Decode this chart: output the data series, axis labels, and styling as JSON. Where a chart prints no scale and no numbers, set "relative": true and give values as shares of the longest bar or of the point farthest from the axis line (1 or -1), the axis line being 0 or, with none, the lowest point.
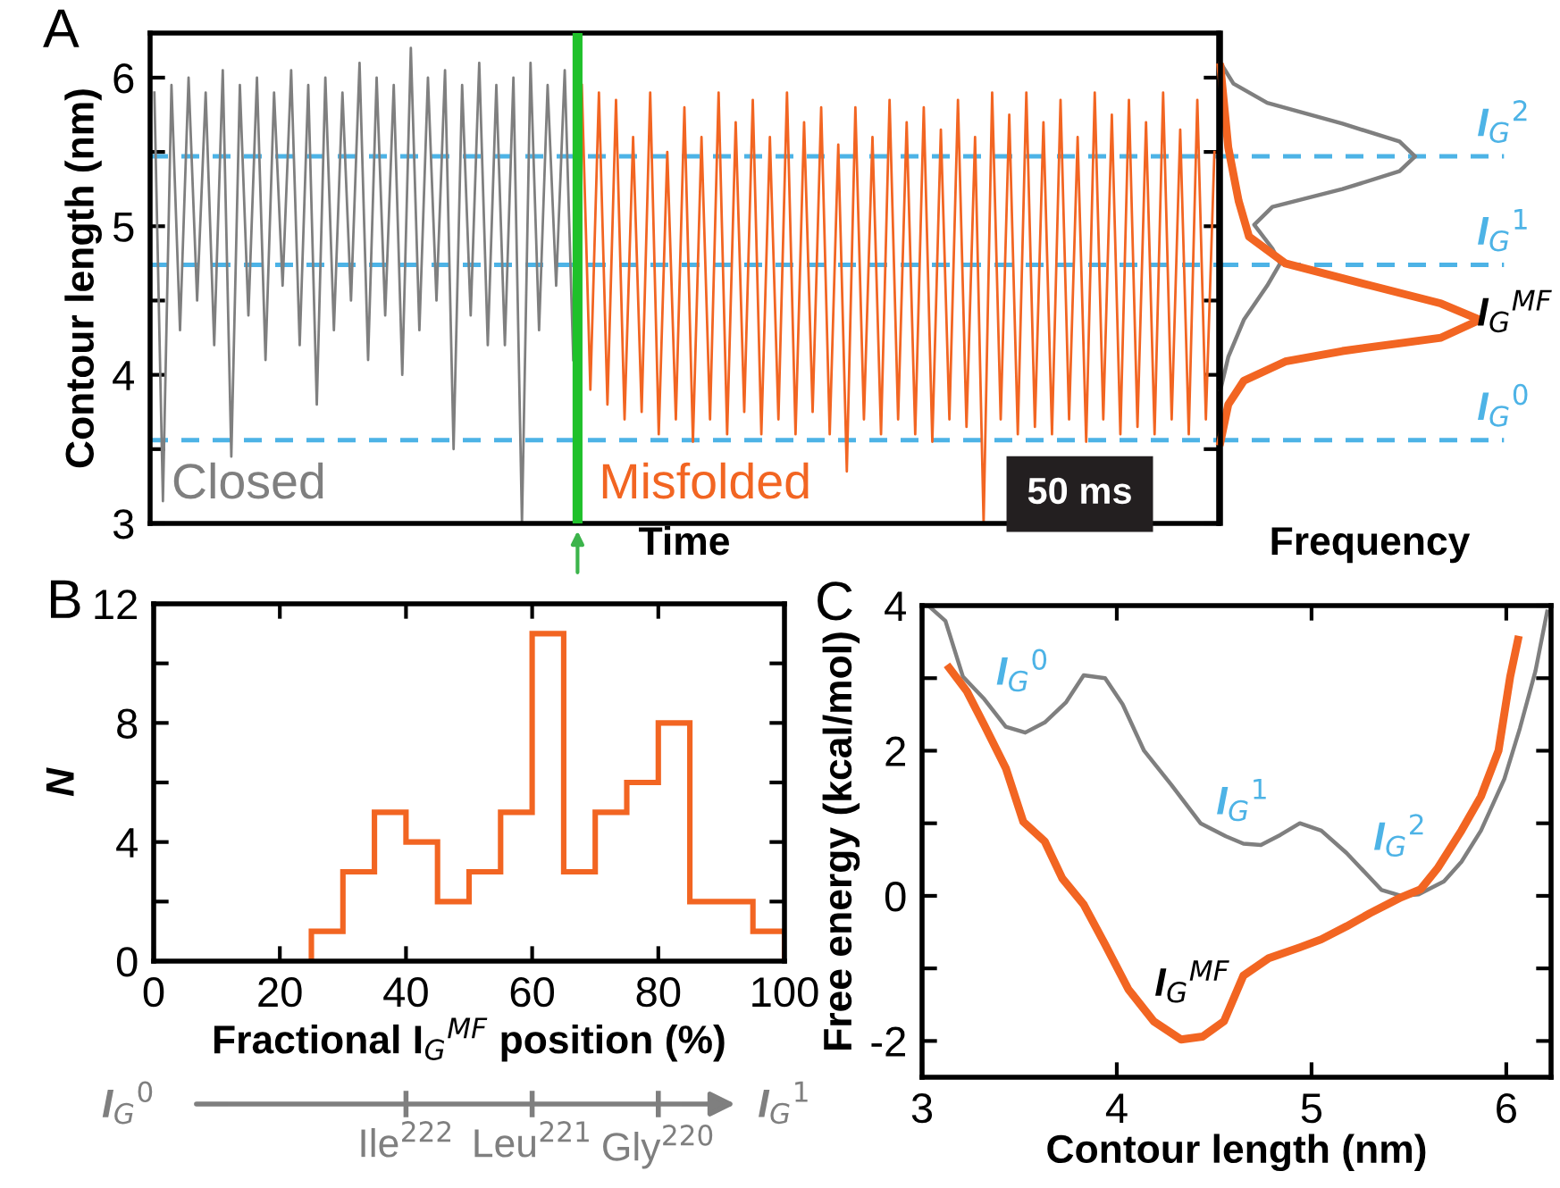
{
  "chart_data": [
    {
      "type": "line",
      "title": "A",
      "xlabel": "Time",
      "ylabel": "Contour length (nm)",
      "categories": [
        null,
        null,
        null,
        null,
        null,
        null,
        null,
        null,
        null,
        null,
        null,
        null,
        null,
        null,
        null,
        null,
        null,
        null,
        null,
        null,
        null,
        null,
        null,
        null,
        null,
        null,
        null,
        null,
        null,
        null,
        null,
        null,
        null,
        null,
        null,
        null,
        null,
        null,
        null,
        null,
        null,
        null,
        null,
        null,
        null,
        null,
        null,
        null,
        null,
        null,
        null,
        null,
        null,
        null,
        null,
        null,
        null,
        null,
        null,
        null,
        null,
        null,
        null,
        null,
        null,
        null,
        null,
        null,
        null,
        null,
        null,
        null,
        null,
        null,
        null,
        null,
        null,
        null,
        null,
        null,
        null,
        null,
        null,
        null,
        null,
        null,
        null,
        null,
        null,
        null,
        null,
        null,
        null,
        null,
        null,
        null,
        null,
        null,
        null,
        null,
        null,
        null,
        null,
        null,
        null,
        null,
        null,
        null,
        null,
        null,
        null,
        null,
        null,
        null,
        null,
        null,
        null,
        null,
        null,
        null,
        null,
        null,
        null,
        null,
        null
      ],
      "ylim": [
        3,
        6.3
      ],
      "yticks": [
        3,
        {
          "value": 3.5,
          "label": null
        },
        4,
        {
          "value": 4.5,
          "label": null
        },
        5,
        {
          "value": 5.5,
          "label": null
        },
        6
      ],
      "tick_labels": "y",
      "series": [
        {
          "name": "Closed",
          "color": "#7f7f7f",
          "values": [
            5.9,
            3.15,
            5.95,
            4.3,
            6.0,
            4.5,
            5.9,
            4.2,
            6.05,
            3.45,
            5.95,
            4.4,
            6.0,
            4.1,
            5.9,
            4.6,
            6.05,
            4.2,
            5.95,
            3.8,
            6.0,
            4.3,
            5.9,
            4.5,
            6.1,
            4.1,
            6.0,
            4.4,
            5.95,
            4.0,
            6.2,
            4.3,
            6.0,
            4.5,
            6.05,
            3.5,
            5.95,
            4.4,
            6.1,
            4.2,
            5.95,
            4.2,
            6.0,
            3.0,
            6.1,
            4.3,
            5.95,
            4.6,
            6.05,
            4.1,
            null,
            null,
            null,
            null,
            null,
            null,
            null,
            null,
            null,
            null,
            null,
            null,
            null,
            null,
            null,
            null,
            null,
            null,
            null,
            null,
            null,
            null,
            null,
            null,
            null,
            null,
            null,
            null,
            null,
            null,
            null,
            null,
            null,
            null,
            null,
            null,
            null,
            null,
            null,
            null,
            null,
            null,
            null,
            null,
            null,
            null,
            null,
            null,
            null,
            null,
            null,
            null,
            null,
            null,
            null,
            null,
            null,
            null,
            null,
            null,
            null,
            null,
            null,
            null,
            null,
            null,
            null,
            null,
            null,
            null,
            null,
            null,
            null,
            null,
            null
          ]
        },
        {
          "name": "Misfolded",
          "color": "#f26522",
          "values": [
            null,
            null,
            null,
            null,
            null,
            null,
            null,
            null,
            null,
            null,
            null,
            null,
            null,
            null,
            null,
            null,
            null,
            null,
            null,
            null,
            null,
            null,
            null,
            null,
            null,
            null,
            null,
            null,
            null,
            null,
            null,
            null,
            null,
            null,
            null,
            null,
            null,
            null,
            null,
            null,
            null,
            null,
            null,
            null,
            null,
            null,
            null,
            null,
            null,
            null,
            5.95,
            3.9,
            5.9,
            3.8,
            5.85,
            3.7,
            5.6,
            3.75,
            5.9,
            3.6,
            5.5,
            3.7,
            5.8,
            3.55,
            5.6,
            3.7,
            5.9,
            3.6,
            5.7,
            3.75,
            5.85,
            3.6,
            5.6,
            3.7,
            5.9,
            3.6,
            5.7,
            3.75,
            5.8,
            3.6,
            5.55,
            3.35,
            5.8,
            3.7,
            5.6,
            3.6,
            5.85,
            3.7,
            5.7,
            3.6,
            5.8,
            3.55,
            5.65,
            3.7,
            5.85,
            3.65,
            5.6,
            3.0,
            5.9,
            3.7,
            5.75,
            3.6,
            5.9,
            3.65,
            5.7,
            3.6,
            5.85,
            3.7,
            5.6,
            3.55,
            5.9,
            3.7,
            5.75,
            3.6,
            5.85,
            3.65,
            5.7,
            3.6,
            5.9,
            3.7,
            5.65,
            3.6,
            5.85,
            3.7,
            5.5
          ]
        }
      ],
      "ref_lines": [
        {
          "axis": "y",
          "value": 5.47,
          "color": "#4db3e6",
          "line_style": "dashed"
        },
        {
          "axis": "y",
          "value": 4.74,
          "color": "#4db3e6",
          "line_style": "dashed"
        },
        {
          "axis": "y",
          "value": 3.56,
          "color": "#4db3e6",
          "line_style": "dashed"
        }
      ],
      "annotations": [
        "50 ms"
      ]
    },
    {
      "type": "line",
      "orientation": "horizontal",
      "relative": true,
      "xlabel": "Frequency",
      "ylim": [
        3,
        6.3
      ],
      "tick_labels": false,
      "series": [
        {
          "color": "#7f7f7f",
          "x": [
            6.1,
            5.96,
            5.83,
            5.69,
            5.57,
            5.47,
            5.37,
            5.25,
            5.13,
            5.01,
            4.85,
            4.75,
            4.6,
            4.37,
            4.12,
            3.9
          ],
          "values": [
            0,
            0.05,
            0.18,
            0.47,
            0.69,
            0.75,
            0.69,
            0.47,
            0.2,
            0.13,
            0.2,
            0.23,
            0.18,
            0.09,
            0.03,
            0
          ]
        },
        {
          "color": "#f26522",
          "x": [
            6.07,
            5.53,
            5.17,
            4.93,
            4.75,
            4.6,
            4.48,
            4.37,
            4.25,
            4.16,
            4.09,
            3.96,
            3.8,
            3.55
          ],
          "values": [
            0,
            0.03,
            0.07,
            0.11,
            0.25,
            0.58,
            0.85,
            1.0,
            0.85,
            0.47,
            0.25,
            0.09,
            0.03,
            0
          ]
        }
      ],
      "ref_lines": [
        {
          "axis": "y",
          "value": 5.47,
          "label": "I$_{G}$$^{2}$",
          "color": "#4db3e6",
          "line_style": "dashed"
        },
        {
          "axis": "y",
          "value": 4.74,
          "label": "I$_{G}$$^{1}$",
          "color": "#4db3e6",
          "line_style": "dashed"
        },
        {
          "axis": "y",
          "value": 3.56,
          "label": "I$_{G}$$^{0}$",
          "color": "#4db3e6",
          "line_style": "dashed"
        }
      ],
      "annotations": [
        "I$_{G}$$^{MF}$"
      ]
    },
    {
      "type": "histogram",
      "title": "B",
      "xlabel": "Fractional I$_{G}$$^{MF}$ position (%)",
      "ylabel": "N",
      "bins": [
        25,
        30,
        35,
        40,
        45,
        50,
        55,
        60,
        65,
        70,
        75,
        80,
        85,
        90,
        95,
        100
      ],
      "values": [
        1,
        3,
        5,
        4,
        2,
        3,
        5,
        11,
        3,
        5,
        6,
        8,
        2,
        2,
        1
      ],
      "color": "#f26522",
      "xlim": [
        0,
        100
      ],
      "xticks": [
        0,
        20,
        40,
        60,
        80,
        100
      ],
      "ylim": [
        0,
        12
      ],
      "yticks": [
        0,
        {
          "value": 2,
          "label": null
        },
        4,
        {
          "value": 6,
          "label": null
        },
        8,
        {
          "value": 10,
          "label": null
        },
        12
      ],
      "annotations": [
        "I$_{G}$$^{0}$",
        "I$_{G}$$^{1}$",
        "Ile$^{222}$",
        "Leu$^{221}$",
        "Gly$^{220}$"
      ]
    },
    {
      "type": "line",
      "title": "C",
      "xlabel": "Contour length (nm)",
      "ylabel": "Free energy (kcal/mol)",
      "xlim": [
        3,
        6.23
      ],
      "xticks": [
        3,
        4,
        5,
        6
      ],
      "ylim": [
        -2.5,
        4
      ],
      "yticks": [
        -2,
        {
          "value": -1,
          "label": null
        },
        0,
        {
          "value": 1,
          "label": null
        },
        2,
        {
          "value": 3,
          "label": null
        },
        4
      ],
      "series": [
        {
          "color": "#7f7f7f",
          "x": [
            3.04,
            3.12,
            3.21,
            3.32,
            3.43,
            3.53,
            3.63,
            3.74,
            3.83,
            3.94,
            4.03,
            4.14,
            4.28,
            4.43,
            4.56,
            4.65,
            4.74,
            4.84,
            4.94,
            5.05,
            5.18,
            5.36,
            5.46,
            5.55,
            5.68,
            5.77,
            5.87,
            5.99,
            6.07,
            6.15,
            6.21
          ],
          "values": [
            3.98,
            3.79,
            3.02,
            2.71,
            2.33,
            2.25,
            2.39,
            2.67,
            3.04,
            3.0,
            2.64,
            2.0,
            1.53,
            1.0,
            0.82,
            0.72,
            0.7,
            0.84,
            1.0,
            0.9,
            0.59,
            0.08,
            0,
            0.02,
            0.2,
            0.47,
            0.9,
            1.61,
            2.31,
            3.1,
            3.92
          ]
        },
        {
          "color": "#f26522",
          "x": [
            3.14,
            3.23,
            3.32,
            3.43,
            3.52,
            3.63,
            3.72,
            3.83,
            3.94,
            4.06,
            4.19,
            4.33,
            4.44,
            4.55,
            4.65,
            4.78,
            4.94,
            5.05,
            5.18,
            5.3,
            5.46,
            5.56,
            5.65,
            5.77,
            5.87,
            5.96,
            6.02,
            6.06
          ],
          "values": [
            3.14,
            2.82,
            2.35,
            1.76,
            1.02,
            0.75,
            0.24,
            -0.12,
            -0.67,
            -1.29,
            -1.73,
            -1.98,
            -1.94,
            -1.73,
            -1.1,
            -0.86,
            -0.71,
            -0.6,
            -0.42,
            -0.24,
            -0.02,
            0.09,
            0.39,
            0.9,
            1.37,
            2.0,
            3.02,
            3.53
          ]
        }
      ],
      "annotations": [
        "I$_{G}$$^{0}$",
        "I$_{G}$$^{1}$",
        "I$_{G}$$^{2}$",
        "I$_{G}$$^{MF}$"
      ]
    }
  ]
}
